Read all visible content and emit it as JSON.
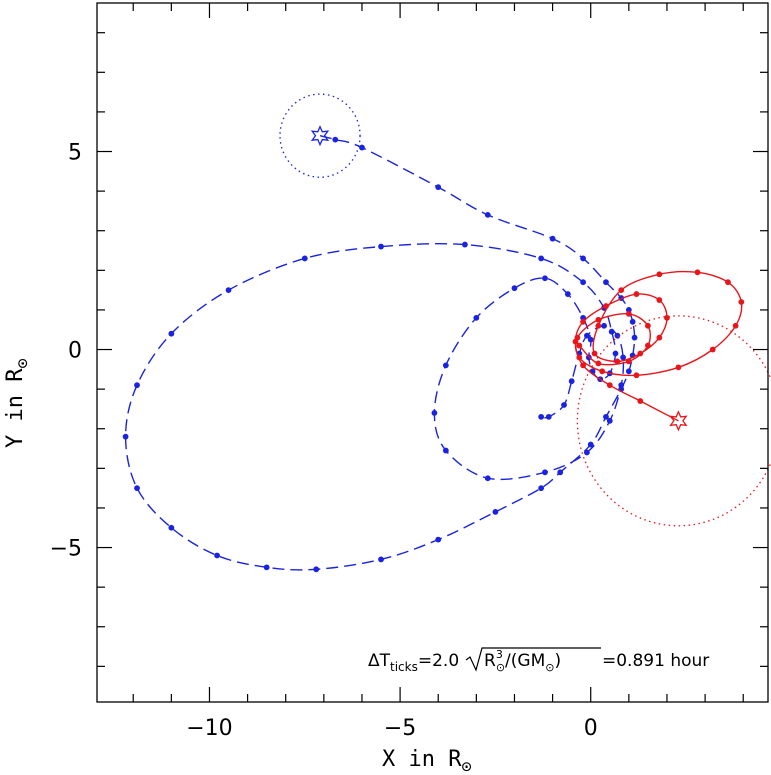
{
  "chart_data": {
    "type": "line",
    "xlabel": "X in R",
    "ylabel": "Y in R",
    "label_subscript": "⊙",
    "xlim": [
      -12.95,
      4.65
    ],
    "ylim": [
      -8.9,
      8.75
    ],
    "xticks": [
      -10,
      -5,
      0
    ],
    "yticks": [
      -5,
      0,
      5
    ],
    "xtick_labels": [
      "−10",
      "−5",
      "0"
    ],
    "ytick_labels": [
      "−5",
      "0",
      "5"
    ],
    "grid": false,
    "colors": {
      "blue": "#1a23e0",
      "red": "#e8151b",
      "axis": "#000000"
    },
    "series": [
      {
        "color": "blue",
        "style": "dashed-with-dots",
        "marker": "star",
        "circle": {
          "cx": -7.1,
          "cy": 5.4,
          "r": 1.05
        },
        "points": [
          [
            -7.1,
            5.4
          ],
          [
            -6.7,
            5.3
          ],
          [
            -6.0,
            5.1
          ],
          [
            -4.0,
            4.1
          ],
          [
            -2.7,
            3.4
          ],
          [
            -1.0,
            2.8
          ],
          [
            -0.2,
            2.3
          ],
          [
            0.4,
            1.7
          ],
          [
            0.8,
            1.3
          ],
          [
            1.0,
            1.0
          ],
          [
            1.1,
            0.7
          ],
          [
            1.15,
            0.3
          ],
          [
            1.1,
            -0.15
          ],
          [
            1.0,
            -0.55
          ],
          [
            0.8,
            -1.0
          ],
          [
            0.4,
            -1.7
          ],
          [
            0.0,
            -2.4
          ],
          [
            -0.8,
            -3.1
          ],
          [
            -1.3,
            -3.5
          ],
          [
            -2.5,
            -4.1
          ],
          [
            -4.0,
            -4.8
          ],
          [
            -5.5,
            -5.3
          ],
          [
            -7.2,
            -5.55
          ],
          [
            -8.5,
            -5.5
          ],
          [
            -9.8,
            -5.2
          ],
          [
            -11.0,
            -4.5
          ],
          [
            -11.9,
            -3.5
          ],
          [
            -12.2,
            -2.2
          ],
          [
            -11.9,
            -0.9
          ],
          [
            -11.0,
            0.4
          ],
          [
            -9.5,
            1.5
          ],
          [
            -7.5,
            2.3
          ],
          [
            -5.5,
            2.6
          ],
          [
            -3.3,
            2.65
          ],
          [
            -1.3,
            2.3
          ],
          [
            -0.2,
            1.7
          ],
          [
            0.35,
            1.05
          ],
          [
            0.55,
            0.45
          ],
          [
            0.65,
            -0.1
          ],
          [
            0.5,
            -0.6
          ],
          [
            0.25,
            -0.75
          ],
          [
            0.05,
            -0.55
          ],
          [
            -0.05,
            -0.2
          ],
          [
            0.0,
            0.25
          ],
          [
            -0.2,
            0.8
          ],
          [
            -0.6,
            1.4
          ],
          [
            -1.2,
            1.8
          ],
          [
            -2.0,
            1.55
          ],
          [
            -3.0,
            0.8
          ],
          [
            -3.8,
            -0.4
          ],
          [
            -4.1,
            -1.6
          ],
          [
            -3.8,
            -2.55
          ],
          [
            -2.7,
            -3.25
          ],
          [
            -1.2,
            -3.1
          ],
          [
            -0.1,
            -2.6
          ],
          [
            0.5,
            -1.8
          ],
          [
            0.8,
            -0.9
          ],
          [
            0.85,
            -0.2
          ],
          [
            0.7,
            0.35
          ],
          [
            0.35,
            0.6
          ],
          [
            -0.1,
            0.35
          ],
          [
            -0.3,
            -0.1
          ],
          [
            -0.5,
            -0.8
          ],
          [
            -0.7,
            -1.4
          ],
          [
            -1.1,
            -1.7
          ],
          [
            -1.3,
            -1.7
          ]
        ]
      },
      {
        "color": "red",
        "style": "solid-with-dots",
        "marker": "star",
        "circle": {
          "cx": 2.3,
          "cy": -1.8,
          "r": 2.65
        },
        "points": [
          [
            2.3,
            -1.8
          ],
          [
            1.3,
            -1.3
          ],
          [
            0.5,
            -0.9
          ],
          [
            -0.2,
            -0.4
          ],
          [
            -0.4,
            0.2
          ],
          [
            -0.2,
            0.7
          ],
          [
            0.4,
            1.1
          ],
          [
            1.2,
            1.4
          ],
          [
            1.8,
            1.25
          ],
          [
            2.0,
            0.8
          ],
          [
            1.8,
            0.3
          ],
          [
            1.3,
            -0.1
          ],
          [
            0.7,
            -0.3
          ],
          [
            0.1,
            -0.1
          ],
          [
            0.2,
            0.6
          ],
          [
            0.8,
            1.5
          ],
          [
            1.8,
            1.9
          ],
          [
            2.8,
            1.95
          ],
          [
            3.6,
            1.7
          ],
          [
            3.95,
            1.2
          ],
          [
            3.8,
            0.6
          ],
          [
            3.2,
            0.0
          ],
          [
            2.3,
            -0.45
          ],
          [
            1.2,
            -0.65
          ],
          [
            0.3,
            -0.55
          ],
          [
            -0.3,
            -0.2
          ],
          [
            -0.35,
            0.3
          ],
          [
            0.2,
            0.75
          ],
          [
            1.0,
            0.9
          ],
          [
            1.5,
            0.6
          ],
          [
            1.5,
            0.1
          ],
          [
            1.0,
            -0.3
          ],
          [
            0.2,
            -0.35
          ],
          [
            -0.3,
            0.1
          ]
        ]
      }
    ],
    "annotation": {
      "prefix": "ΔT",
      "sub": "ticks",
      "eq1": "=2.0",
      "radicand_a": "R",
      "radicand_a_sup": "3",
      "radicand_a_sub": "⊙",
      "radicand_b": "/(GM",
      "radicand_b_sub": "⊙",
      "radicand_b_close": ")",
      "value": "=0.891 hour"
    }
  }
}
